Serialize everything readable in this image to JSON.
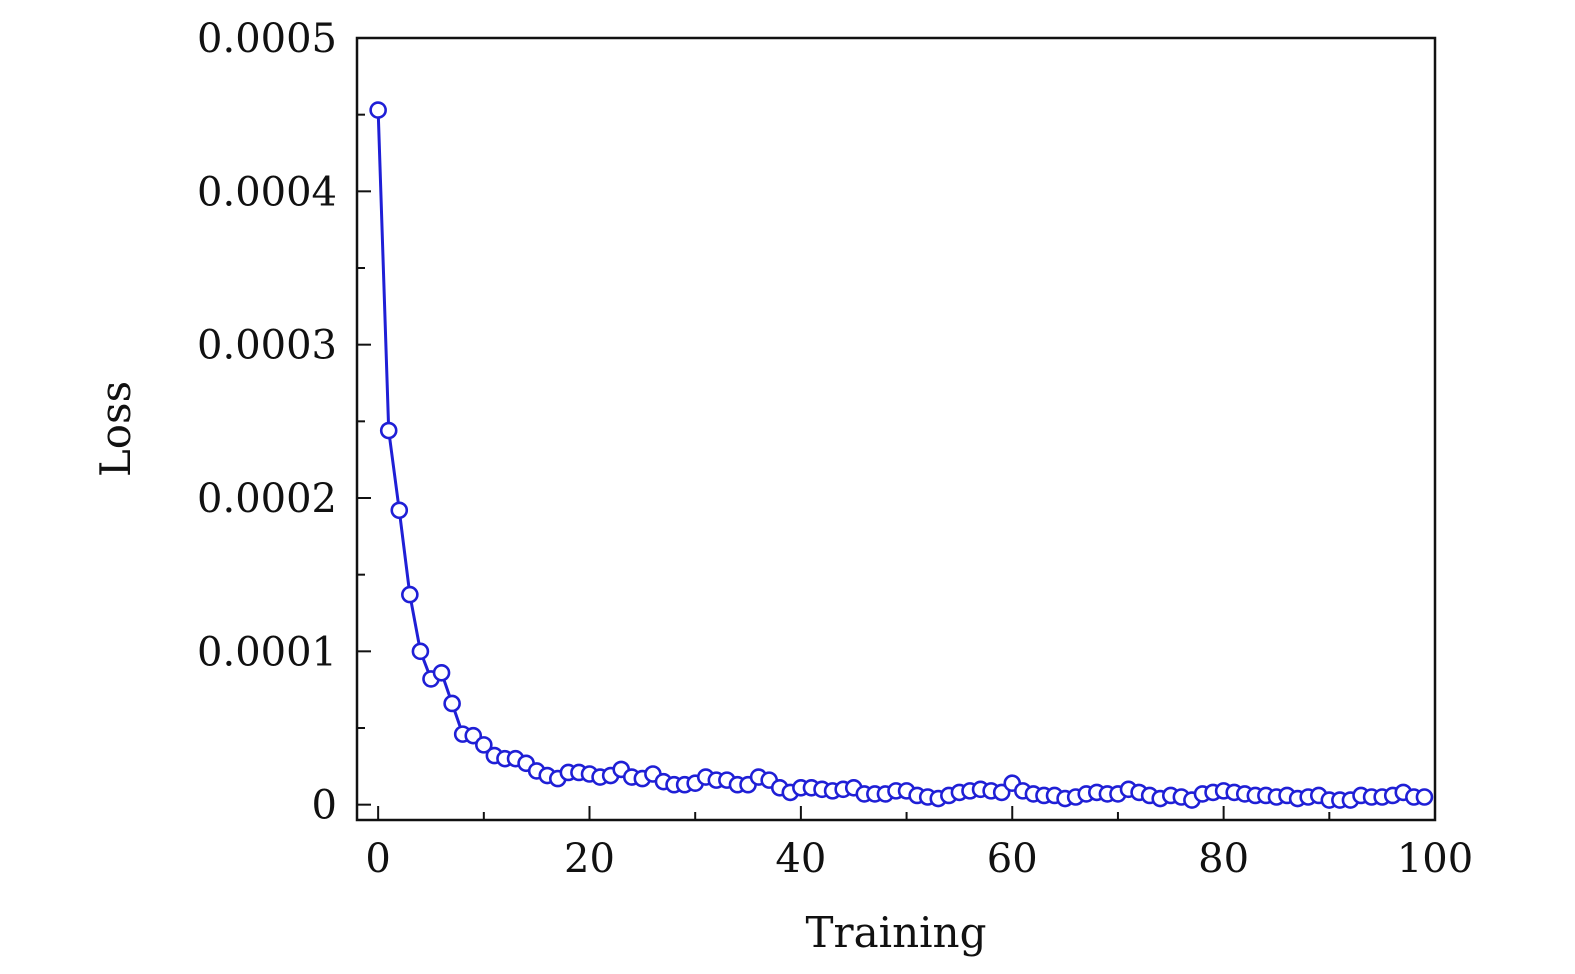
{
  "chart_data": {
    "type": "line",
    "title": "",
    "xlabel": "Training",
    "ylabel": "Loss",
    "xlim": [
      -2,
      100
    ],
    "ylim": [
      -1e-05,
      0.0005
    ],
    "x_ticks": [
      "0",
      "20",
      "40",
      "60",
      "80",
      "100"
    ],
    "y_ticks": [
      "0",
      "0.0001",
      "0.0002",
      "0.0003",
      "0.0004",
      "0.0005"
    ],
    "x_tick_values": [
      0,
      20,
      40,
      60,
      80,
      100
    ],
    "y_tick_values": [
      0,
      0.0001,
      0.0002,
      0.0003,
      0.0004,
      0.0005
    ],
    "x_minor_step": 10,
    "y_minor_step": 5e-05,
    "grid": false,
    "marker": "open-circle",
    "color": "#1f1fd6",
    "series": [
      {
        "x": [
          0,
          1,
          2,
          3,
          4,
          5,
          6,
          7,
          8,
          9,
          10,
          11,
          12,
          13,
          14,
          15,
          16,
          17,
          18,
          19,
          20,
          21,
          22,
          23,
          24,
          25,
          26,
          27,
          28,
          29,
          30,
          31,
          32,
          33,
          34,
          35,
          36,
          37,
          38,
          39,
          40,
          41,
          42,
          43,
          44,
          45,
          46,
          47,
          48,
          49,
          50,
          51,
          52,
          53,
          54,
          55,
          56,
          57,
          58,
          59,
          60,
          61,
          62,
          63,
          64,
          65,
          66,
          67,
          68,
          69,
          70,
          71,
          72,
          73,
          74,
          75,
          76,
          77,
          78,
          79,
          80,
          81,
          82,
          83,
          84,
          85,
          86,
          87,
          88,
          89,
          90,
          91,
          92,
          93,
          94,
          95,
          96,
          97,
          98,
          99
        ],
        "values": [
          0.000453,
          0.000244,
          0.000192,
          0.000137,
          0.0001,
          8.2e-05,
          8.6e-05,
          6.6e-05,
          4.6e-05,
          4.5e-05,
          3.9e-05,
          3.2e-05,
          3e-05,
          3e-05,
          2.7e-05,
          2.2e-05,
          1.9e-05,
          1.7e-05,
          2.1e-05,
          2.1e-05,
          2e-05,
          1.8e-05,
          1.9e-05,
          2.3e-05,
          1.8e-05,
          1.7e-05,
          2e-05,
          1.5e-05,
          1.3e-05,
          1.3e-05,
          1.4e-05,
          1.8e-05,
          1.6e-05,
          1.6e-05,
          1.3e-05,
          1.3e-05,
          1.8e-05,
          1.6e-05,
          1.1e-05,
          8e-06,
          1.1e-05,
          1.1e-05,
          1e-05,
          9e-06,
          1e-05,
          1.1e-05,
          7e-06,
          7e-06,
          7e-06,
          9e-06,
          9e-06,
          6e-06,
          5e-06,
          4e-06,
          6e-06,
          8e-06,
          9e-06,
          1e-05,
          9e-06,
          8e-06,
          1.4e-05,
          9e-06,
          7e-06,
          6e-06,
          6e-06,
          4e-06,
          5e-06,
          7e-06,
          8e-06,
          7e-06,
          7e-06,
          1e-05,
          8e-06,
          6e-06,
          4e-06,
          6e-06,
          5e-06,
          3e-06,
          7e-06,
          8e-06,
          9e-06,
          8e-06,
          7e-06,
          6e-06,
          6e-06,
          5e-06,
          6e-06,
          4e-06,
          5e-06,
          6e-06,
          3e-06,
          3e-06,
          3e-06,
          6e-06,
          5e-06,
          5e-06,
          6e-06,
          8e-06,
          5e-06,
          5e-06
        ]
      }
    ]
  }
}
